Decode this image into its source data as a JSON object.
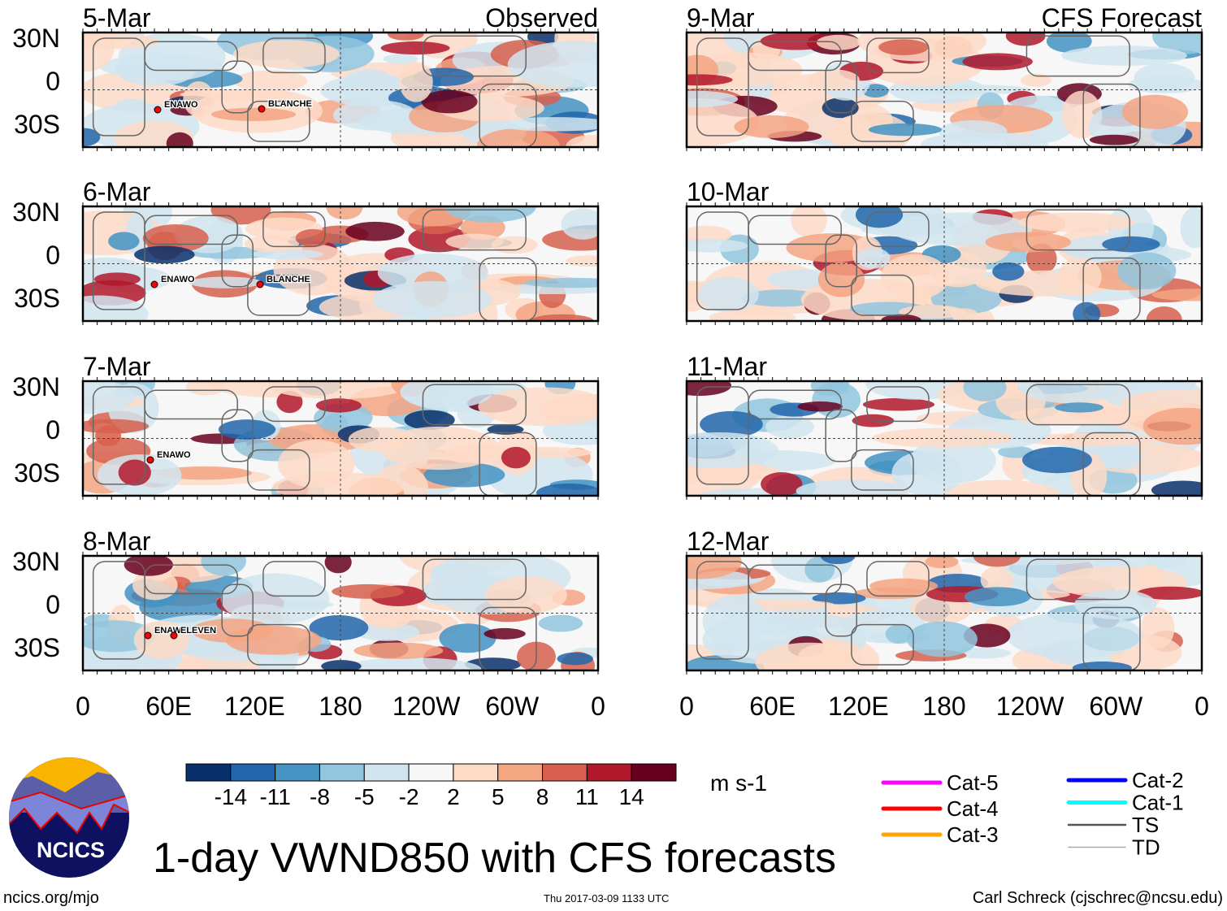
{
  "chart_data": {
    "type": "heatmap",
    "title": "1-day VWND850 with CFS forecasts",
    "units": "m s-1",
    "columns": [
      {
        "heading": "Observed",
        "panels": [
          {
            "date": "5-Mar",
            "storms": [
              "ENAWO",
              "BLANCHE"
            ]
          },
          {
            "date": "6-Mar",
            "storms": [
              "ENAWO",
              "BLANCHE"
            ]
          },
          {
            "date": "7-Mar",
            "storms": [
              "ENAWO"
            ]
          },
          {
            "date": "8-Mar",
            "storms": [
              "ENAWO",
              "ELEVEN"
            ]
          }
        ]
      },
      {
        "heading": "CFS Forecast",
        "panels": [
          {
            "date": "9-Mar",
            "storms": []
          },
          {
            "date": "10-Mar",
            "storms": []
          },
          {
            "date": "11-Mar",
            "storms": []
          },
          {
            "date": "12-Mar",
            "storms": []
          }
        ]
      }
    ],
    "y_ticks": [
      "30N",
      "0",
      "30S"
    ],
    "x_ticks": [
      "0",
      "60E",
      "120E",
      "180",
      "120W",
      "60W",
      "0"
    ],
    "colorbar": {
      "levels": [
        "-14",
        "-11",
        "-8",
        "-5",
        "-2",
        "2",
        "5",
        "8",
        "11",
        "14"
      ],
      "colors": [
        "#08306b",
        "#2166ac",
        "#4393c3",
        "#92c5de",
        "#d1e5f0",
        "#f7f7f7",
        "#fddbc7",
        "#f4a582",
        "#d6604d",
        "#b2182b",
        "#67001f"
      ]
    },
    "track_legend": [
      {
        "label": "Cat-5",
        "color": "#ff00ff"
      },
      {
        "label": "Cat-4",
        "color": "#ff0000"
      },
      {
        "label": "Cat-3",
        "color": "#ffa500"
      },
      {
        "label": "Cat-2",
        "color": "#0000ff"
      },
      {
        "label": "Cat-1",
        "color": "#00ffff"
      },
      {
        "label": "TS",
        "color": "#555555"
      },
      {
        "label": "TD",
        "color": "#aaaaaa"
      }
    ]
  },
  "footer": {
    "logo_text": "NCICS",
    "url": "ncics.org/mjo",
    "timestamp": "Thu 2017-03-09 1133 UTC",
    "author": "Carl Schreck (cjschrec@ncsu.edu)"
  }
}
